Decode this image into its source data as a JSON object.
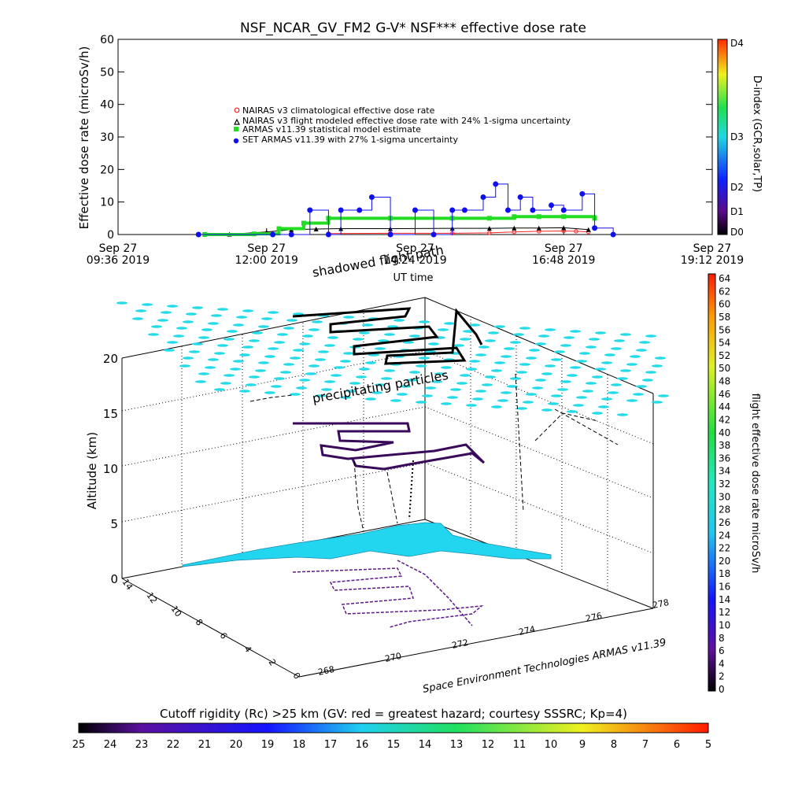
{
  "top_chart": {
    "title": "NSF_NCAR_GV_FM2 G-V* NSF*** effective dose rate",
    "ylabel": "Effective dose rate (microSv/h)",
    "xlabel": "UT time",
    "right_axis_label": "D-index (GCR,solar,TP)",
    "x_ticks": [
      {
        "line1": "Sep 27",
        "line2": "09:36 2019"
      },
      {
        "line1": "Sep 27",
        "line2": "12:00 2019"
      },
      {
        "line1": "Sep 27",
        "line2": "14:24 2019"
      },
      {
        "line1": "Sep 27",
        "line2": "16:48 2019"
      },
      {
        "line1": "Sep 27",
        "line2": "19:12 2019"
      }
    ],
    "y_ticks": [
      "0",
      "10",
      "20",
      "30",
      "40",
      "50",
      "60"
    ],
    "d_index_ticks": [
      "D0",
      "D1",
      "D2",
      "D3",
      "D4"
    ],
    "legend": [
      "NAIRAS v3 climatological effective dose rate",
      "NAIRAS v3 flight modeled effective dose rate with 24% 1-sigma uncertainty",
      "ARMAS v11.39 statistical model estimate",
      "SET ARMAS v11.39 with 27% 1-sigma uncertainty"
    ],
    "colors": {
      "nairas_clim": "#ff2020",
      "nairas_flight": "#000000",
      "armas_model": "#22dd22",
      "set_armas": "#1010ee"
    }
  },
  "chart_data": [
    {
      "type": "line",
      "title": "NSF_NCAR_GV_FM2 G-V* NSF*** effective dose rate",
      "xlabel": "UT time",
      "ylabel": "Effective dose rate (microSv/h)",
      "x_units": "hours UT on Sep 27 2019",
      "xlim": [
        9.6,
        19.2
      ],
      "ylim": [
        0,
        60
      ],
      "series": [
        {
          "name": "NAIRAS v3 climatological effective dose rate",
          "x": [
            13.0,
            14.0,
            15.0,
            15.6,
            16.0,
            16.4,
            16.8,
            17.0,
            17.2
          ],
          "y": [
            0.3,
            0.4,
            0.4,
            0.5,
            0.8,
            1.0,
            1.1,
            1.0,
            0.8
          ]
        },
        {
          "name": "NAIRAS v3 flight modeled effective dose rate with 24% 1-sigma uncertainty",
          "x": [
            11.4,
            12.0,
            12.4,
            12.8,
            13.2,
            14.0,
            15.0,
            15.6,
            16.0,
            16.4,
            16.8,
            17.2
          ],
          "y": [
            0.1,
            0.8,
            1.5,
            1.7,
            1.8,
            1.8,
            1.9,
            1.9,
            2.0,
            2.0,
            2.1,
            1.5
          ]
        },
        {
          "name": "ARMAS v11.39 statistical model estimate",
          "x": [
            11.0,
            11.8,
            12.2,
            12.6,
            13.0,
            14.0,
            15.0,
            15.6,
            16.0,
            16.4,
            16.8,
            17.3
          ],
          "y": [
            0.0,
            0.2,
            1.8,
            3.5,
            5.0,
            5.0,
            5.0,
            5.0,
            5.5,
            5.5,
            5.5,
            5.0
          ]
        },
        {
          "name": "SET ARMAS v11.39 with 27% 1-sigma uncertainty",
          "x": [
            10.9,
            12.1,
            12.4,
            12.7,
            13.0,
            13.2,
            13.5,
            13.7,
            14.0,
            14.4,
            14.7,
            15.0,
            15.2,
            15.5,
            15.7,
            15.9,
            16.1,
            16.3,
            16.6,
            16.8,
            17.1,
            17.3,
            17.6
          ],
          "y": [
            0.0,
            0.0,
            0.0,
            7.5,
            0.0,
            7.5,
            7.5,
            11.5,
            0.0,
            7.5,
            0.0,
            7.5,
            7.5,
            11.5,
            15.5,
            7.5,
            11.5,
            7.5,
            9.0,
            7.5,
            12.5,
            2.0,
            0.0
          ]
        }
      ]
    },
    {
      "type": "scatter",
      "title": "",
      "xlabel": "",
      "ylabel": "Altitude (km)",
      "zlim": [
        0,
        20
      ],
      "longitude_ticks": [
        "268",
        "270",
        "272",
        "274",
        "276",
        "278"
      ],
      "latitude_ticks": [
        "0",
        "2",
        "4",
        "6",
        "8",
        "10",
        "12",
        "14"
      ],
      "altitude_ticks": [
        "0",
        "5",
        "10",
        "15",
        "20"
      ],
      "annotations": [
        "shadowed flight path",
        "precipitating particles"
      ],
      "credit": "Space Environment Technologies ARMAS v11.39"
    },
    {
      "type": "heatmap",
      "title": "flight effective dose rate microSv/h",
      "colorbar_ticks": [
        "0",
        "2",
        "4",
        "6",
        "8",
        "10",
        "12",
        "14",
        "16",
        "18",
        "20",
        "22",
        "24",
        "26",
        "28",
        "30",
        "32",
        "34",
        "36",
        "38",
        "40",
        "42",
        "44",
        "46",
        "48",
        "50",
        "52",
        "54",
        "56",
        "58",
        "60",
        "62",
        "64"
      ]
    },
    {
      "type": "heatmap",
      "title": "Cutoff rigidity (Rc) >25 km (GV: red = greatest hazard; courtesy SSSRC; Kp=4)",
      "colorbar_ticks": [
        "25",
        "24",
        "23",
        "22",
        "21",
        "20",
        "19",
        "18",
        "17",
        "16",
        "15",
        "14",
        "13",
        "12",
        "11",
        "10",
        "9",
        "8",
        "7",
        "6",
        "5"
      ]
    }
  ],
  "scene3d": {
    "ylabel": "Altitude (km)",
    "z_ticks": [
      "0",
      "5",
      "10",
      "15",
      "20"
    ],
    "lon_ticks": [
      "268",
      "270",
      "272",
      "274",
      "276",
      "278"
    ],
    "lat_ticks": [
      "0",
      "2",
      "4",
      "6",
      "8",
      "10",
      "12",
      "14"
    ],
    "annotation_shadow": "shadowed flight path",
    "annotation_precip": "precipitating particles",
    "credit": "Space Environment Technologies ARMAS v11.39"
  },
  "dose_colorbar": {
    "label": "flight effective dose rate microSv/h",
    "ticks": [
      "0",
      "2",
      "4",
      "6",
      "8",
      "10",
      "12",
      "14",
      "16",
      "18",
      "20",
      "22",
      "24",
      "26",
      "28",
      "30",
      "32",
      "34",
      "36",
      "38",
      "40",
      "42",
      "44",
      "46",
      "48",
      "50",
      "52",
      "54",
      "56",
      "58",
      "60",
      "62",
      "64"
    ]
  },
  "rc_colorbar": {
    "label": "Cutoff rigidity (Rc) >25 km (GV: red = greatest hazard; courtesy SSSRC; Kp=4)",
    "ticks": [
      "25",
      "24",
      "23",
      "22",
      "21",
      "20",
      "19",
      "18",
      "17",
      "16",
      "15",
      "14",
      "13",
      "12",
      "11",
      "10",
      "9",
      "8",
      "7",
      "6",
      "5"
    ]
  }
}
